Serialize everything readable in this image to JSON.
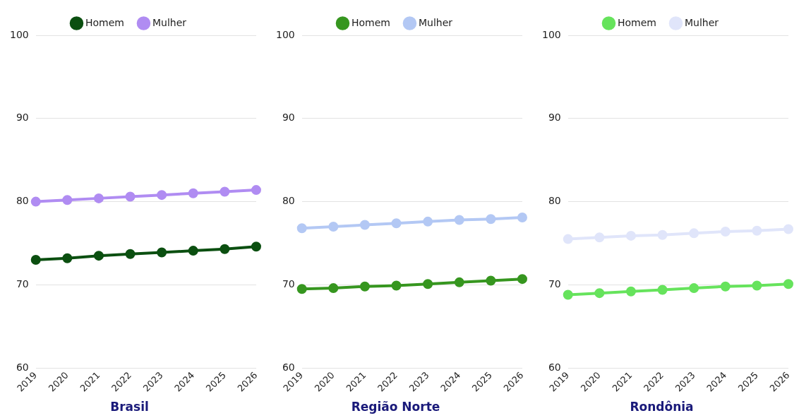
{
  "chart_data": [
    {
      "type": "line",
      "title": "Brasil",
      "categories": [
        "2019",
        "2020",
        "2021",
        "2022",
        "2023",
        "2024",
        "2025",
        "2026"
      ],
      "series": [
        {
          "name": "Homem",
          "color": "#0b4f10",
          "values": [
            73.0,
            73.2,
            73.5,
            73.7,
            73.9,
            74.1,
            74.3,
            74.6
          ]
        },
        {
          "name": "Mulher",
          "color": "#b08cf2",
          "values": [
            80.0,
            80.2,
            80.4,
            80.6,
            80.8,
            81.0,
            81.2,
            81.4
          ]
        }
      ],
      "ylim": [
        60,
        100
      ],
      "yticks": [
        60,
        70,
        80,
        90,
        100
      ],
      "grid": "y",
      "legend": "top",
      "marker": "circle",
      "line_style": "solid"
    },
    {
      "type": "line",
      "title": "Região Norte",
      "categories": [
        "2019",
        "2020",
        "2021",
        "2022",
        "2023",
        "2024",
        "2025",
        "2026"
      ],
      "series": [
        {
          "name": "Homem",
          "color": "#36961f",
          "values": [
            69.5,
            69.6,
            69.8,
            69.9,
            70.1,
            70.3,
            70.5,
            70.7
          ]
        },
        {
          "name": "Mulher",
          "color": "#b3c8f4",
          "values": [
            76.8,
            77.0,
            77.2,
            77.4,
            77.6,
            77.8,
            77.9,
            78.1
          ]
        }
      ],
      "ylim": [
        60,
        100
      ],
      "yticks": [
        60,
        70,
        80,
        90,
        100
      ],
      "grid": "y",
      "legend": "top",
      "marker": "circle",
      "line_style": "solid"
    },
    {
      "type": "line",
      "title": "Rondônia",
      "categories": [
        "2019",
        "2020",
        "2021",
        "2022",
        "2023",
        "2024",
        "2025",
        "2026"
      ],
      "series": [
        {
          "name": "Homem",
          "color": "#66e35c",
          "values": [
            68.8,
            69.0,
            69.2,
            69.4,
            69.6,
            69.8,
            69.9,
            70.1
          ]
        },
        {
          "name": "Mulher",
          "color": "#e0e5fa",
          "values": [
            75.5,
            75.7,
            75.9,
            76.0,
            76.2,
            76.4,
            76.5,
            76.7
          ]
        }
      ],
      "ylim": [
        60,
        100
      ],
      "yticks": [
        60,
        70,
        80,
        90,
        100
      ],
      "grid": "y",
      "legend": "top",
      "marker": "circle",
      "line_style": "solid"
    }
  ]
}
